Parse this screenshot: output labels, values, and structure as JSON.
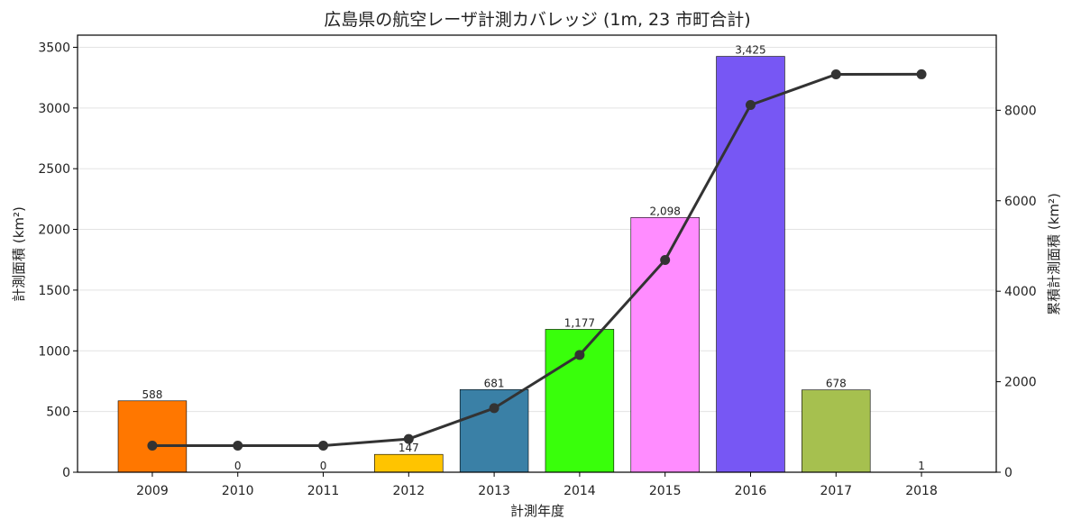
{
  "chart_data": {
    "type": "bar",
    "title": "広島県の航空レーザ計測カバレッジ (1m, 23 市町合計)",
    "xlabel": "計測年度",
    "ylabel": "計測面積 (km²)",
    "y2label": "累積計測面積 (km²)",
    "categories": [
      "2009",
      "2010",
      "2011",
      "2012",
      "2013",
      "2014",
      "2015",
      "2016",
      "2017",
      "2018"
    ],
    "values": [
      588,
      0,
      0,
      147,
      681,
      1177,
      2098,
      3425,
      678,
      1
    ],
    "value_labels": [
      "588",
      "0",
      "0",
      "147",
      "681",
      "1,177",
      "2,098",
      "3,425",
      "678",
      "1"
    ],
    "bar_colors": [
      "#ff7700",
      "#ff7700",
      "#ff7700",
      "#ffc400",
      "#3a80a6",
      "#39ff0b",
      "#ff8cff",
      "#7757f4",
      "#a6c04f",
      "#a6c04f"
    ],
    "ylim": [
      0,
      3600
    ],
    "yticks": [
      0,
      500,
      1000,
      1500,
      2000,
      2500,
      3000,
      3500
    ],
    "grid": true,
    "series": [
      {
        "type": "line",
        "axis": "right",
        "color": "#333333",
        "values": [
          588,
          588,
          588,
          735,
          1416,
          2593,
          4691,
          8116,
          8794,
          8795
        ]
      }
    ],
    "y2lim": [
      0,
      9660
    ],
    "y2ticks": [
      0,
      2000,
      4000,
      6000,
      8000
    ]
  }
}
